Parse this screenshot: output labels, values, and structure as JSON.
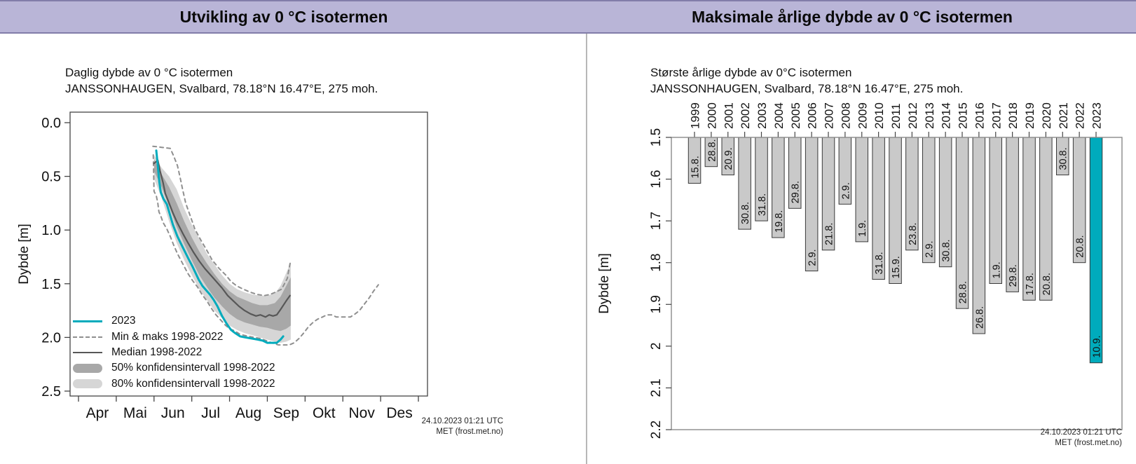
{
  "header": {
    "left_title": "Utvikling av 0 °C isotermen",
    "right_title": "Maksimale årlige dybde av 0 °C isotermen",
    "background_color": "#b9b5d7"
  },
  "footer": {
    "timestamp": "24.10.2023 01:21 UTC",
    "source": "MET (frost.met.no)"
  },
  "colors": {
    "accent_teal": "#00abbc",
    "bar_fill": "#c9c9c9",
    "bar_stroke": "#3a3a3a",
    "median_line": "#575757",
    "dashed_line": "#8f8f8f",
    "band_50": "#a8a8a8",
    "band_80": "#d6d6d6",
    "axis": "#444444"
  },
  "chart_data": [
    {
      "type": "line",
      "title": "Daglig dybde av 0 °C isotermen",
      "subtitle": "JANSSONHAUGEN, Svalbard, 78.18°N 16.47°E, 275 moh.",
      "ylabel": "Dybde [m]",
      "ylim": [
        0.0,
        2.5
      ],
      "ytick_labels": [
        "0.0",
        "0.5",
        "1.0",
        "1.5",
        "2.0",
        "2.5"
      ],
      "ytick_values": [
        0.0,
        0.5,
        1.0,
        1.5,
        2.0,
        2.5
      ],
      "xtick_labels": [
        "Apr",
        "Mai",
        "Jun",
        "Jul",
        "Aug",
        "Sep",
        "Okt",
        "Nov",
        "Des"
      ],
      "x_unit": "months after 1 April (0 = 1 Apr, 9 = 1 Jan)",
      "grid": false,
      "legend_position": "bottom-left inside",
      "legend": [
        {
          "label": "2023",
          "swatch": "teal-line"
        },
        {
          "label": "Min & maks 1998-2022",
          "swatch": "dashed-line"
        },
        {
          "label": "Median 1998-2022",
          "swatch": "dark-line"
        },
        {
          "label": "50% konfidensintervall 1998-2022",
          "swatch": "band-dark"
        },
        {
          "label": "80% konfidensintervall 1998-2022",
          "swatch": "band-light"
        }
      ],
      "series": {
        "year2023": [
          [
            2.06,
            0.26
          ],
          [
            2.1,
            0.4
          ],
          [
            2.14,
            0.55
          ],
          [
            2.18,
            0.65
          ],
          [
            2.25,
            0.71
          ],
          [
            2.34,
            0.76
          ],
          [
            2.4,
            0.83
          ],
          [
            2.5,
            0.95
          ],
          [
            2.62,
            1.06
          ],
          [
            2.76,
            1.16
          ],
          [
            2.9,
            1.26
          ],
          [
            3.02,
            1.34
          ],
          [
            3.18,
            1.46
          ],
          [
            3.28,
            1.52
          ],
          [
            3.38,
            1.56
          ],
          [
            3.48,
            1.6
          ],
          [
            3.58,
            1.65
          ],
          [
            3.68,
            1.71
          ],
          [
            3.8,
            1.8
          ],
          [
            3.92,
            1.87
          ],
          [
            4.04,
            1.93
          ],
          [
            4.15,
            1.96
          ],
          [
            4.28,
            1.99
          ],
          [
            4.42,
            2.0
          ],
          [
            4.58,
            2.01
          ],
          [
            4.75,
            2.02
          ],
          [
            4.88,
            2.03
          ],
          [
            5.0,
            2.05
          ],
          [
            5.12,
            2.05
          ],
          [
            5.25,
            2.05
          ],
          [
            5.35,
            2.02
          ],
          [
            5.42,
            1.99
          ]
        ],
        "median": [
          [
            2.0,
            0.38
          ],
          [
            2.1,
            0.35
          ],
          [
            2.16,
            0.45
          ],
          [
            2.24,
            0.56
          ],
          [
            2.3,
            0.66
          ],
          [
            2.4,
            0.75
          ],
          [
            2.5,
            0.84
          ],
          [
            2.6,
            0.92
          ],
          [
            2.76,
            1.03
          ],
          [
            2.9,
            1.12
          ],
          [
            3.05,
            1.21
          ],
          [
            3.2,
            1.29
          ],
          [
            3.35,
            1.36
          ],
          [
            3.5,
            1.42
          ],
          [
            3.65,
            1.48
          ],
          [
            3.8,
            1.54
          ],
          [
            3.95,
            1.61
          ],
          [
            4.1,
            1.66
          ],
          [
            4.25,
            1.71
          ],
          [
            4.4,
            1.75
          ],
          [
            4.55,
            1.78
          ],
          [
            4.7,
            1.8
          ],
          [
            4.82,
            1.79
          ],
          [
            4.95,
            1.81
          ],
          [
            5.05,
            1.79
          ],
          [
            5.15,
            1.8
          ],
          [
            5.25,
            1.79
          ],
          [
            5.35,
            1.74
          ],
          [
            5.5,
            1.66
          ],
          [
            5.6,
            1.61
          ]
        ],
        "min": [
          [
            1.97,
            0.22
          ],
          [
            2.2,
            0.23
          ],
          [
            2.43,
            0.24
          ],
          [
            2.52,
            0.31
          ],
          [
            2.62,
            0.4
          ],
          [
            2.69,
            0.51
          ],
          [
            2.75,
            0.61
          ],
          [
            2.84,
            0.75
          ],
          [
            2.97,
            0.88
          ],
          [
            3.08,
            0.99
          ],
          [
            3.25,
            1.1
          ],
          [
            3.4,
            1.19
          ],
          [
            3.54,
            1.28
          ],
          [
            3.73,
            1.36
          ],
          [
            3.9,
            1.42
          ],
          [
            4.04,
            1.48
          ],
          [
            4.19,
            1.52
          ],
          [
            4.36,
            1.55
          ],
          [
            4.56,
            1.58
          ],
          [
            4.73,
            1.6
          ],
          [
            4.92,
            1.61
          ],
          [
            5.07,
            1.6
          ],
          [
            5.21,
            1.58
          ],
          [
            5.38,
            1.55
          ],
          [
            5.53,
            1.45
          ],
          [
            5.58,
            1.35
          ],
          [
            5.62,
            1.28
          ]
        ],
        "maks": [
          [
            1.98,
            0.3
          ],
          [
            2.0,
            0.64
          ],
          [
            2.06,
            0.68
          ],
          [
            2.1,
            0.75
          ],
          [
            2.13,
            0.83
          ],
          [
            2.19,
            0.88
          ],
          [
            2.24,
            0.93
          ],
          [
            2.34,
            0.99
          ],
          [
            2.43,
            1.06
          ],
          [
            2.52,
            1.14
          ],
          [
            2.62,
            1.22
          ],
          [
            2.71,
            1.28
          ],
          [
            2.8,
            1.34
          ],
          [
            2.89,
            1.4
          ],
          [
            3.02,
            1.47
          ],
          [
            3.15,
            1.53
          ],
          [
            3.27,
            1.6
          ],
          [
            3.4,
            1.66
          ],
          [
            3.52,
            1.73
          ],
          [
            3.64,
            1.79
          ],
          [
            3.77,
            1.84
          ],
          [
            3.9,
            1.89
          ],
          [
            4.01,
            1.92
          ],
          [
            4.14,
            1.94
          ],
          [
            4.27,
            1.97
          ],
          [
            4.38,
            1.98
          ],
          [
            4.51,
            1.99
          ],
          [
            4.66,
            2.0
          ],
          [
            4.82,
            2.01
          ],
          [
            4.97,
            2.03
          ],
          [
            5.12,
            2.05
          ],
          [
            5.29,
            2.07
          ],
          [
            5.44,
            2.07
          ],
          [
            5.58,
            2.07
          ],
          [
            5.71,
            2.05
          ],
          [
            5.84,
            2.01
          ],
          [
            5.96,
            1.96
          ],
          [
            6.09,
            1.9
          ],
          [
            6.21,
            1.86
          ],
          [
            6.33,
            1.83
          ],
          [
            6.46,
            1.81
          ],
          [
            6.58,
            1.79
          ],
          [
            6.7,
            1.79
          ],
          [
            6.83,
            1.81
          ],
          [
            6.95,
            1.81
          ],
          [
            7.07,
            1.81
          ],
          [
            7.2,
            1.81
          ],
          [
            7.33,
            1.78
          ],
          [
            7.44,
            1.75
          ],
          [
            7.57,
            1.69
          ],
          [
            7.7,
            1.63
          ],
          [
            7.81,
            1.57
          ],
          [
            7.94,
            1.51
          ]
        ],
        "band80_upper": [
          [
            2.0,
            0.3
          ],
          [
            2.2,
            0.42
          ],
          [
            2.4,
            0.5
          ],
          [
            2.6,
            0.62
          ],
          [
            2.8,
            0.8
          ],
          [
            3.0,
            0.95
          ],
          [
            3.2,
            1.08
          ],
          [
            3.4,
            1.22
          ],
          [
            3.6,
            1.32
          ],
          [
            3.8,
            1.42
          ],
          [
            4.0,
            1.5
          ],
          [
            4.2,
            1.55
          ],
          [
            4.4,
            1.58
          ],
          [
            4.6,
            1.6
          ],
          [
            4.8,
            1.61
          ],
          [
            5.0,
            1.61
          ],
          [
            5.2,
            1.59
          ],
          [
            5.35,
            1.52
          ],
          [
            5.5,
            1.4
          ],
          [
            5.62,
            1.3
          ]
        ],
        "band80_lower": [
          [
            2.0,
            0.52
          ],
          [
            2.2,
            0.7
          ],
          [
            2.4,
            0.92
          ],
          [
            2.6,
            1.12
          ],
          [
            2.8,
            1.28
          ],
          [
            3.0,
            1.42
          ],
          [
            3.2,
            1.55
          ],
          [
            3.4,
            1.65
          ],
          [
            3.6,
            1.75
          ],
          [
            3.8,
            1.82
          ],
          [
            4.0,
            1.89
          ],
          [
            4.2,
            1.93
          ],
          [
            4.4,
            1.96
          ],
          [
            4.6,
            1.98
          ],
          [
            4.8,
            2.0
          ],
          [
            5.0,
            2.02
          ],
          [
            5.2,
            2.04
          ],
          [
            5.35,
            2.05
          ],
          [
            5.5,
            2.04
          ],
          [
            5.62,
            2.02
          ]
        ],
        "band50_upper": [
          [
            2.0,
            0.34
          ],
          [
            2.2,
            0.48
          ],
          [
            2.4,
            0.6
          ],
          [
            2.6,
            0.75
          ],
          [
            2.8,
            0.92
          ],
          [
            3.0,
            1.07
          ],
          [
            3.2,
            1.2
          ],
          [
            3.4,
            1.31
          ],
          [
            3.6,
            1.41
          ],
          [
            3.8,
            1.5
          ],
          [
            4.0,
            1.57
          ],
          [
            4.2,
            1.62
          ],
          [
            4.4,
            1.65
          ],
          [
            4.6,
            1.68
          ],
          [
            4.8,
            1.7
          ],
          [
            5.0,
            1.7
          ],
          [
            5.2,
            1.68
          ],
          [
            5.35,
            1.62
          ],
          [
            5.5,
            1.52
          ],
          [
            5.62,
            1.44
          ]
        ],
        "band50_lower": [
          [
            2.0,
            0.45
          ],
          [
            2.2,
            0.6
          ],
          [
            2.4,
            0.78
          ],
          [
            2.6,
            0.97
          ],
          [
            2.8,
            1.13
          ],
          [
            3.0,
            1.28
          ],
          [
            3.2,
            1.42
          ],
          [
            3.4,
            1.53
          ],
          [
            3.6,
            1.63
          ],
          [
            3.8,
            1.71
          ],
          [
            4.0,
            1.78
          ],
          [
            4.2,
            1.83
          ],
          [
            4.4,
            1.86
          ],
          [
            4.6,
            1.88
          ],
          [
            4.8,
            1.9
          ],
          [
            5.0,
            1.91
          ],
          [
            5.2,
            1.93
          ],
          [
            5.35,
            1.94
          ],
          [
            5.5,
            1.92
          ],
          [
            5.62,
            1.89
          ]
        ]
      }
    },
    {
      "type": "bar",
      "title": "Største årlige dybde av 0°C isotermen",
      "subtitle": "JANSSONHAUGEN, Svalbard, 78.18°N 16.47°E, 275 moh.",
      "ylabel": "Dybde [m]",
      "ylim": [
        1.5,
        2.2
      ],
      "ytick_labels": [
        "1.5",
        "1.6",
        "1.7",
        "1.8",
        "1.9",
        "2",
        "2.1",
        "2.2"
      ],
      "ytick_values": [
        1.5,
        1.6,
        1.7,
        1.8,
        1.9,
        2.0,
        2.1,
        2.2
      ],
      "orientation": "bars hang downward from 1.5 m",
      "grid": false,
      "categories": [
        1999,
        2000,
        2001,
        2002,
        2003,
        2004,
        2005,
        2006,
        2007,
        2008,
        2009,
        2010,
        2011,
        2012,
        2013,
        2014,
        2015,
        2016,
        2017,
        2018,
        2019,
        2020,
        2021,
        2022,
        2023
      ],
      "values": [
        1.61,
        1.57,
        1.59,
        1.72,
        1.7,
        1.74,
        1.67,
        1.82,
        1.77,
        1.66,
        1.75,
        1.84,
        1.85,
        1.77,
        1.8,
        1.81,
        1.91,
        1.97,
        1.85,
        1.87,
        1.89,
        1.89,
        1.59,
        1.8,
        2.04
      ],
      "bar_labels": [
        "15.8.",
        "28.8.",
        "20.9.",
        "30.8.",
        "31.8.",
        "19.8.",
        "29.8.",
        "2.9.",
        "21.8.",
        "2.9.",
        "1.9.",
        "31.8.",
        "15.9.",
        "23.8.",
        "2.9.",
        "30.8.",
        "28.8.",
        "26.8.",
        "1.9.",
        "29.8.",
        "17.8.",
        "20.8.",
        "30.8.",
        "20.8.",
        "10.9."
      ],
      "highlight_year": 2023
    }
  ]
}
